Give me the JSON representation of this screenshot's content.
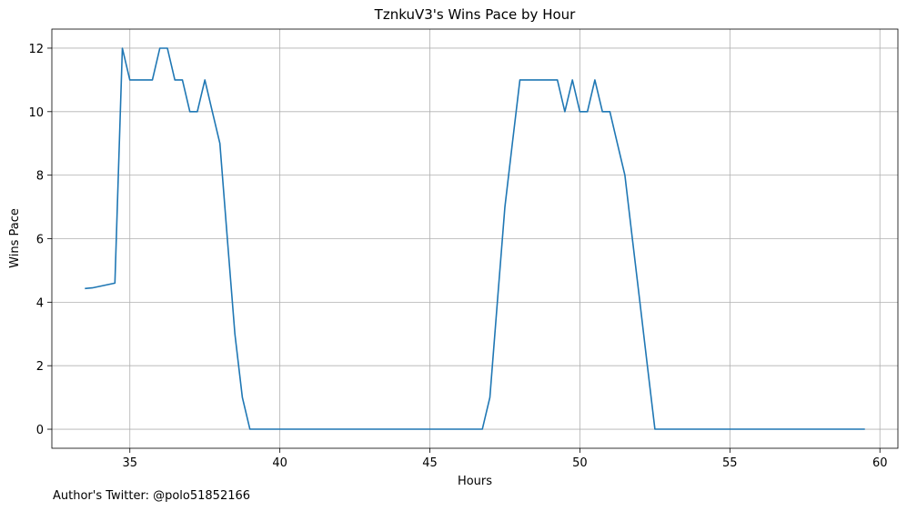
{
  "footnote": "Author's Twitter: @polo51852166",
  "chart_data": {
    "type": "line",
    "title": "TznkuV3's Wins Pace by Hour",
    "xlabel": "Hours",
    "ylabel": "Wins Pace",
    "xlim": [
      32.4,
      60.6
    ],
    "ylim": [
      -0.6,
      12.6
    ],
    "xticks": [
      35,
      40,
      45,
      50,
      55,
      60
    ],
    "yticks": [
      0,
      2,
      4,
      6,
      8,
      10,
      12
    ],
    "grid": true,
    "line_color": "#1f77b4",
    "series": [
      {
        "x": [
          33.5,
          33.75,
          34.0,
          34.25,
          34.5,
          34.75,
          35.0,
          35.25,
          35.5,
          35.75,
          36.0,
          36.25,
          36.5,
          36.75,
          37.0,
          37.25,
          37.5,
          37.75,
          38.0,
          38.25,
          38.5,
          38.75,
          39.0,
          46.75,
          47.0,
          47.25,
          47.5,
          47.75,
          48.0,
          48.25,
          48.5,
          48.75,
          49.0,
          49.25,
          49.5,
          49.75,
          50.0,
          50.25,
          50.5,
          50.75,
          51.0,
          51.25,
          51.5,
          51.75,
          52.0,
          52.25,
          52.5,
          59.5
        ],
        "y": [
          4.43,
          4.45,
          4.5,
          4.55,
          4.6,
          12,
          11,
          11,
          11,
          11,
          12,
          12,
          11,
          11,
          10,
          10,
          11,
          10,
          9,
          6,
          3,
          1,
          0,
          0,
          1,
          4,
          7,
          9,
          11,
          11,
          11,
          11,
          11,
          11,
          10,
          11,
          10,
          10,
          11,
          10,
          10,
          9,
          8,
          6,
          4,
          2,
          0,
          0
        ]
      }
    ]
  }
}
